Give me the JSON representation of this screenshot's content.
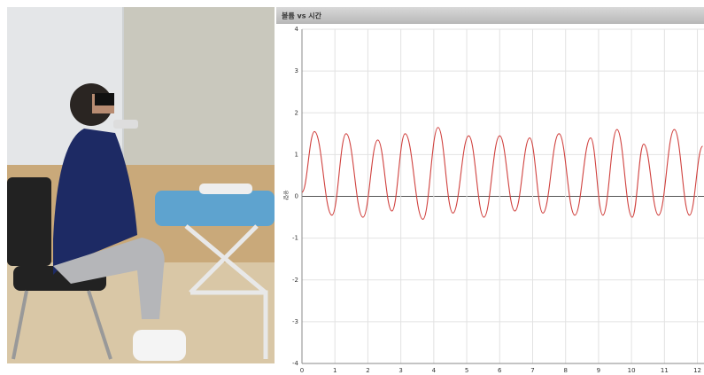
{
  "chart_data": {
    "type": "line",
    "title": "볼륨 vs 시간",
    "y_label": "유량",
    "x": [
      0,
      0.38,
      0.91,
      1.34,
      1.85,
      2.3,
      2.73,
      3.13,
      3.67,
      4.13,
      4.58,
      5.06,
      5.52,
      6.0,
      6.46,
      6.91,
      7.31,
      7.8,
      8.28,
      8.76,
      9.13,
      9.56,
      10.02,
      10.37,
      10.82,
      11.3,
      11.76,
      12.16
    ],
    "series": [
      {
        "color": "#d0413e",
        "values": [
          0.1,
          1.55,
          -0.45,
          1.5,
          -0.5,
          1.35,
          -0.35,
          1.5,
          -0.55,
          1.65,
          -0.4,
          1.45,
          -0.5,
          1.45,
          -0.35,
          1.4,
          -0.4,
          1.5,
          -0.45,
          1.4,
          -0.45,
          1.6,
          -0.5,
          1.25,
          -0.45,
          1.6,
          -0.45,
          1.2
        ]
      }
    ],
    "xlim": [
      0,
      12.2
    ],
    "xticks": [
      0,
      1,
      2,
      3,
      4,
      5,
      6,
      7,
      8,
      9,
      10,
      11,
      12
    ],
    "ylim": [
      -4,
      4
    ],
    "yticks": [
      -4,
      -3,
      -2,
      -1,
      0,
      1,
      2,
      3,
      4
    ],
    "grid": true
  }
}
